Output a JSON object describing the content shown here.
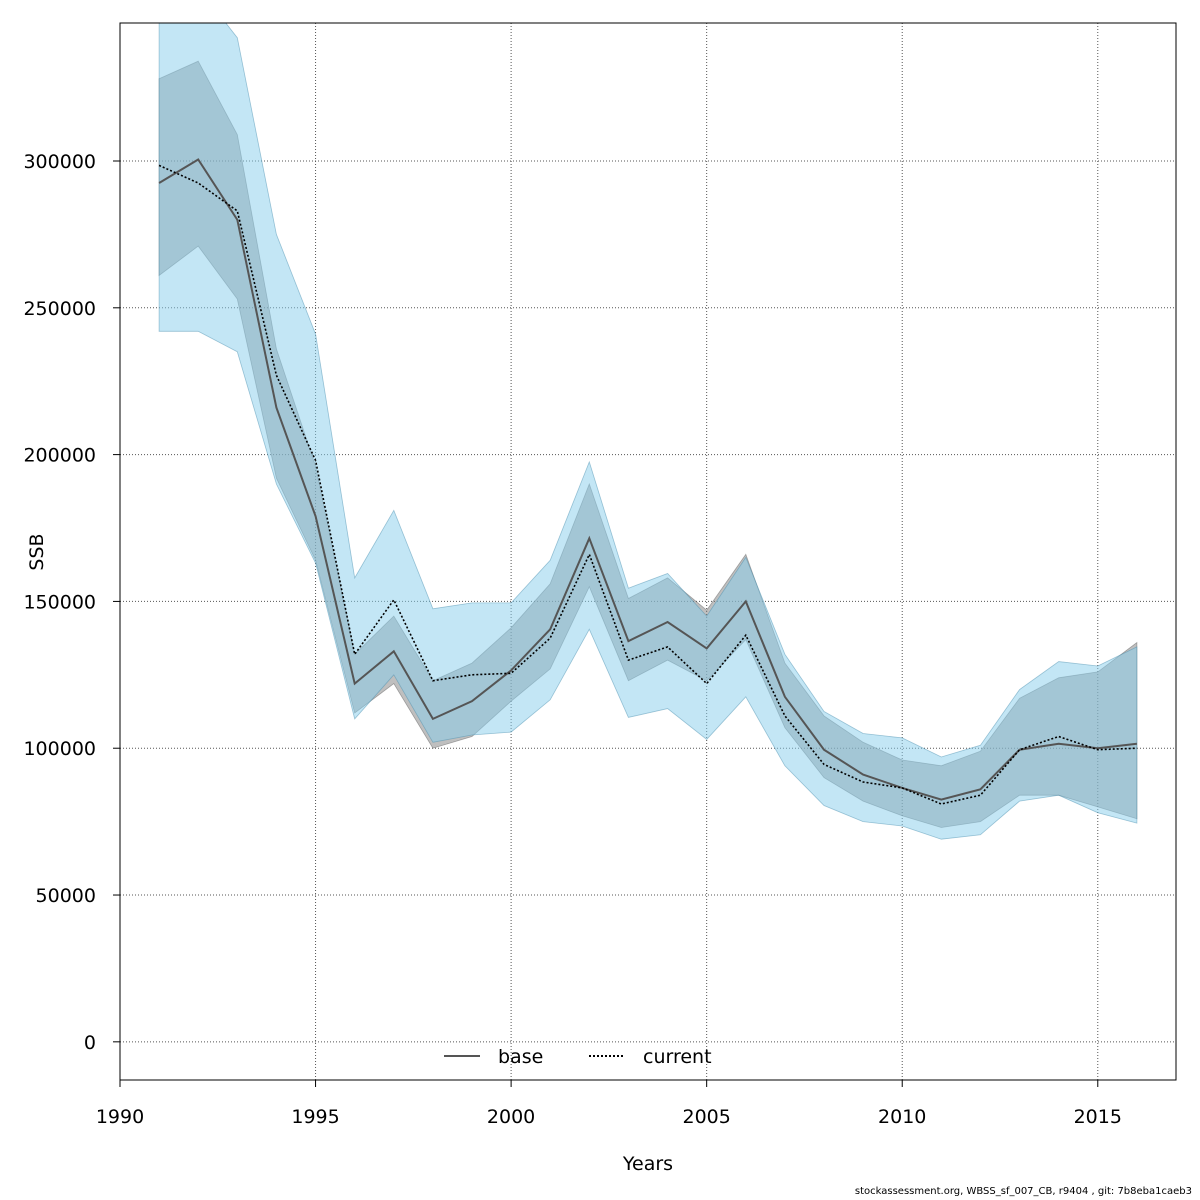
{
  "chart_data": {
    "type": "line",
    "xlabel": "Years",
    "ylabel": "SSB",
    "xlim": [
      1990,
      2017
    ],
    "ylim": [
      -13000,
      347000
    ],
    "x_ticks": [
      1990,
      1995,
      2000,
      2005,
      2010,
      2015
    ],
    "y_ticks": [
      0,
      50000,
      100000,
      150000,
      200000,
      250000,
      300000
    ],
    "grid": true,
    "legend_position": "bottom-center",
    "x": [
      1991,
      1992,
      1993,
      1994,
      1995,
      1996,
      1997,
      1998,
      1999,
      2000,
      2001,
      2002,
      2003,
      2004,
      2005,
      2006,
      2007,
      2008,
      2009,
      2010,
      2011,
      2012,
      2013,
      2014,
      2015,
      2016
    ],
    "series": [
      {
        "name": "base",
        "style": "solid",
        "color": "#555555",
        "band_color": "#808080",
        "values": [
          292500,
          300500,
          280000,
          216000,
          179000,
          122000,
          133000,
          110000,
          116000,
          126500,
          140500,
          171500,
          136500,
          143000,
          134000,
          150000,
          117500,
          99500,
          91000,
          86500,
          82500,
          86000,
          99500,
          101500,
          100000,
          101500
        ],
        "lower": [
          261000,
          271000,
          253000,
          192000,
          164000,
          112000,
          122000,
          100000,
          104000,
          116000,
          127000,
          155000,
          123000,
          130000,
          123000,
          137000,
          107000,
          90000,
          82000,
          77000,
          73000,
          75000,
          84000,
          84000,
          80000,
          76000
        ],
        "upper": [
          328000,
          334000,
          309000,
          236000,
          196000,
          132000,
          145000,
          123000,
          129000,
          141000,
          156000,
          190000,
          151000,
          158000,
          147000,
          166000,
          129000,
          111000,
          102000,
          96000,
          94000,
          99000,
          117000,
          124000,
          126000,
          136000
        ]
      },
      {
        "name": "current",
        "style": "dotted",
        "color": "#000000",
        "band_color": "#87CEEB",
        "values": [
          298500,
          292500,
          283000,
          227000,
          198000,
          132000,
          150500,
          123000,
          125000,
          125500,
          137500,
          166000,
          130000,
          134500,
          122000,
          138500,
          111000,
          94500,
          88500,
          86500,
          81000,
          84000,
          99500,
          104000,
          99500,
          100000
        ],
        "lower": [
          242000,
          242000,
          235000,
          190000,
          163000,
          110000,
          125000,
          102000,
          104500,
          105500,
          116500,
          140500,
          110500,
          113500,
          103000,
          117500,
          94000,
          80500,
          75000,
          73500,
          69000,
          70500,
          82000,
          84000,
          78000,
          74500
        ],
        "upper": [
          368000,
          359000,
          342000,
          275000,
          241000,
          158000,
          181000,
          147500,
          149500,
          149500,
          164000,
          197500,
          154500,
          159500,
          145000,
          165000,
          132000,
          112500,
          105000,
          103500,
          97000,
          101000,
          120000,
          129500,
          128000,
          134500
        ]
      }
    ],
    "footer": "stockassessment.org, WBSS_sf_007_CB, r9404 , git: 7b8eba1caeb3"
  }
}
